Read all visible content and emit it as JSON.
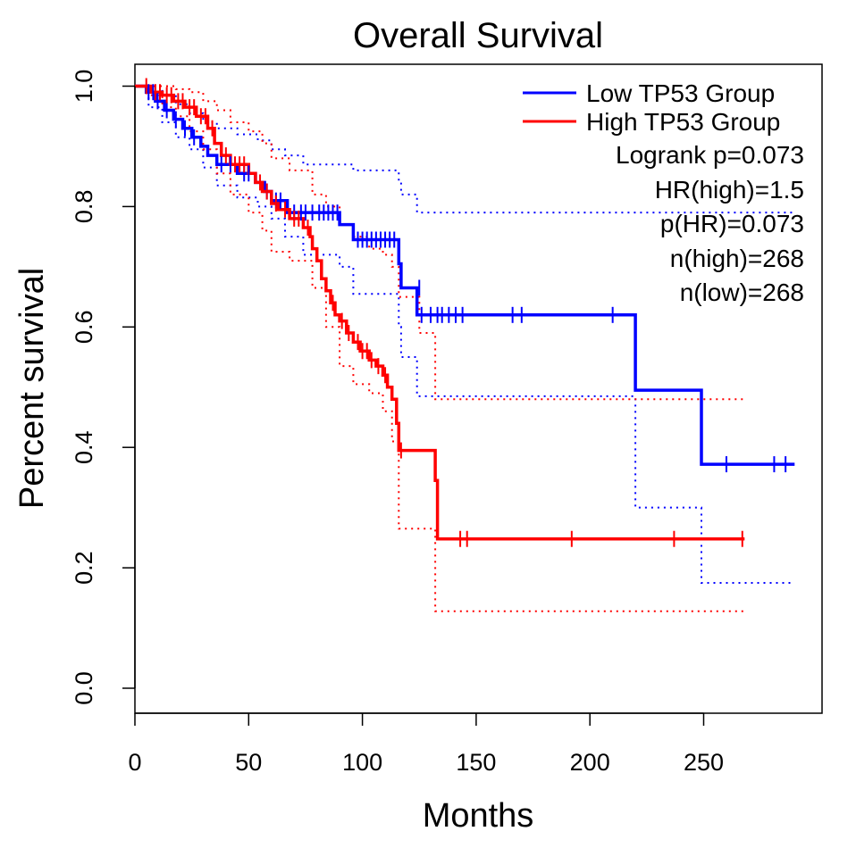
{
  "chart_data": {
    "type": "line",
    "title": "Overall Survival",
    "xlabel": "Months",
    "ylabel": "Percent survival",
    "xlim": [
      0,
      300
    ],
    "ylim": [
      0,
      1.04
    ],
    "x_ticks": [
      0,
      50,
      100,
      150,
      200,
      250
    ],
    "y_ticks": [
      0.0,
      0.2,
      0.4,
      0.6,
      0.8,
      1.0
    ],
    "x_tick_labels": [
      "0",
      "50",
      "100",
      "150",
      "200",
      "250"
    ],
    "y_tick_labels": [
      "0.0",
      "0.2",
      "0.4",
      "0.6",
      "0.8",
      "1.0"
    ],
    "legend": {
      "position": "top-right",
      "entries": [
        {
          "label": "Low TP53 Group",
          "color": "#0000ff"
        },
        {
          "label": "High TP53 Group",
          "color": "#ff0000"
        }
      ],
      "stats": [
        "Logrank p=0.073",
        "HR(high)=1.5",
        "p(HR)=0.073",
        "n(high)=268",
        "n(low)=268"
      ]
    },
    "series": [
      {
        "name": "Low TP53 Group",
        "color": "#0000ff",
        "steps": [
          [
            0,
            1.0
          ],
          [
            5,
            0.99
          ],
          [
            9,
            0.975
          ],
          [
            13,
            0.96
          ],
          [
            17,
            0.945
          ],
          [
            21,
            0.93
          ],
          [
            25,
            0.915
          ],
          [
            29,
            0.9
          ],
          [
            32,
            0.885
          ],
          [
            36,
            0.87
          ],
          [
            45,
            0.855
          ],
          [
            53,
            0.84
          ],
          [
            57,
            0.825
          ],
          [
            60,
            0.81
          ],
          [
            67,
            0.79
          ],
          [
            90,
            0.77
          ],
          [
            96,
            0.745
          ],
          [
            116,
            0.705
          ],
          [
            117,
            0.665
          ],
          [
            124,
            0.62
          ],
          [
            220,
            0.495
          ],
          [
            249,
            0.372
          ],
          [
            290,
            0.372
          ]
        ],
        "censors": [
          [
            6,
            0.99
          ],
          [
            8,
            0.99
          ],
          [
            10,
            0.975
          ],
          [
            14,
            0.96
          ],
          [
            18,
            0.945
          ],
          [
            22,
            0.93
          ],
          [
            26,
            0.915
          ],
          [
            38,
            0.87
          ],
          [
            42,
            0.87
          ],
          [
            48,
            0.855
          ],
          [
            50,
            0.855
          ],
          [
            58,
            0.825
          ],
          [
            62,
            0.81
          ],
          [
            64,
            0.81
          ],
          [
            70,
            0.79
          ],
          [
            73,
            0.79
          ],
          [
            75,
            0.79
          ],
          [
            78,
            0.79
          ],
          [
            81,
            0.79
          ],
          [
            83,
            0.79
          ],
          [
            85,
            0.79
          ],
          [
            87,
            0.79
          ],
          [
            89,
            0.79
          ],
          [
            98,
            0.745
          ],
          [
            100,
            0.745
          ],
          [
            102,
            0.745
          ],
          [
            104,
            0.745
          ],
          [
            106,
            0.745
          ],
          [
            108,
            0.745
          ],
          [
            110,
            0.745
          ],
          [
            112,
            0.745
          ],
          [
            114,
            0.745
          ],
          [
            125,
            0.665
          ],
          [
            126,
            0.62
          ],
          [
            130,
            0.62
          ],
          [
            133,
            0.62
          ],
          [
            135,
            0.62
          ],
          [
            138,
            0.62
          ],
          [
            141,
            0.62
          ],
          [
            144,
            0.62
          ],
          [
            166,
            0.62
          ],
          [
            170,
            0.62
          ],
          [
            210,
            0.62
          ],
          [
            260,
            0.372
          ],
          [
            281,
            0.372
          ],
          [
            286,
            0.372
          ]
        ],
        "ci_upper": [
          [
            0,
            1.0
          ],
          [
            6,
            1.0
          ],
          [
            12,
            0.985
          ],
          [
            18,
            0.97
          ],
          [
            24,
            0.955
          ],
          [
            30,
            0.94
          ],
          [
            36,
            0.93
          ],
          [
            45,
            0.92
          ],
          [
            54,
            0.91
          ],
          [
            60,
            0.895
          ],
          [
            66,
            0.885
          ],
          [
            74,
            0.87
          ],
          [
            96,
            0.86
          ],
          [
            116,
            0.84
          ],
          [
            117,
            0.82
          ],
          [
            124,
            0.79
          ],
          [
            220,
            0.79
          ],
          [
            249,
            0.79
          ],
          [
            290,
            0.79
          ]
        ],
        "ci_lower": [
          [
            0,
            1.0
          ],
          [
            6,
            0.965
          ],
          [
            12,
            0.94
          ],
          [
            18,
            0.915
          ],
          [
            24,
            0.895
          ],
          [
            30,
            0.865
          ],
          [
            36,
            0.835
          ],
          [
            45,
            0.815
          ],
          [
            54,
            0.8
          ],
          [
            60,
            0.78
          ],
          [
            66,
            0.75
          ],
          [
            74,
            0.72
          ],
          [
            90,
            0.7
          ],
          [
            96,
            0.655
          ],
          [
            116,
            0.6
          ],
          [
            117,
            0.55
          ],
          [
            124,
            0.485
          ],
          [
            220,
            0.3
          ],
          [
            249,
            0.175
          ],
          [
            290,
            0.175
          ]
        ]
      },
      {
        "name": "High TP53 Group",
        "color": "#ff0000",
        "steps": [
          [
            0,
            1.0
          ],
          [
            7,
            0.99
          ],
          [
            12,
            0.985
          ],
          [
            17,
            0.975
          ],
          [
            22,
            0.965
          ],
          [
            27,
            0.95
          ],
          [
            32,
            0.93
          ],
          [
            35,
            0.905
          ],
          [
            38,
            0.885
          ],
          [
            42,
            0.87
          ],
          [
            50,
            0.855
          ],
          [
            53,
            0.84
          ],
          [
            56,
            0.825
          ],
          [
            60,
            0.805
          ],
          [
            63,
            0.795
          ],
          [
            68,
            0.78
          ],
          [
            74,
            0.765
          ],
          [
            77,
            0.75
          ],
          [
            78,
            0.73
          ],
          [
            80,
            0.71
          ],
          [
            82,
            0.68
          ],
          [
            84,
            0.66
          ],
          [
            86,
            0.64
          ],
          [
            88,
            0.62
          ],
          [
            90,
            0.61
          ],
          [
            93,
            0.59
          ],
          [
            96,
            0.575
          ],
          [
            99,
            0.56
          ],
          [
            103,
            0.545
          ],
          [
            106,
            0.535
          ],
          [
            109,
            0.52
          ],
          [
            111,
            0.5
          ],
          [
            113,
            0.48
          ],
          [
            115,
            0.44
          ],
          [
            116,
            0.395
          ],
          [
            132,
            0.345
          ],
          [
            133,
            0.248
          ],
          [
            268,
            0.248
          ]
        ],
        "censors": [
          [
            5,
            1.0
          ],
          [
            9,
            0.99
          ],
          [
            11,
            0.99
          ],
          [
            14,
            0.985
          ],
          [
            16,
            0.985
          ],
          [
            19,
            0.975
          ],
          [
            21,
            0.975
          ],
          [
            24,
            0.965
          ],
          [
            26,
            0.965
          ],
          [
            29,
            0.95
          ],
          [
            31,
            0.95
          ],
          [
            34,
            0.93
          ],
          [
            40,
            0.885
          ],
          [
            44,
            0.87
          ],
          [
            46,
            0.87
          ],
          [
            48,
            0.87
          ],
          [
            55,
            0.84
          ],
          [
            58,
            0.825
          ],
          [
            62,
            0.805
          ],
          [
            66,
            0.795
          ],
          [
            70,
            0.78
          ],
          [
            72,
            0.78
          ],
          [
            76,
            0.765
          ],
          [
            87,
            0.64
          ],
          [
            91,
            0.61
          ],
          [
            94,
            0.59
          ],
          [
            98,
            0.575
          ],
          [
            100,
            0.56
          ],
          [
            102,
            0.56
          ],
          [
            104,
            0.545
          ],
          [
            107,
            0.535
          ],
          [
            110,
            0.52
          ],
          [
            117,
            0.395
          ],
          [
            143,
            0.248
          ],
          [
            146,
            0.248
          ],
          [
            192,
            0.248
          ],
          [
            237,
            0.248
          ],
          [
            267,
            0.248
          ]
        ],
        "ci_upper": [
          [
            0,
            1.0
          ],
          [
            6,
            1.0
          ],
          [
            12,
            1.0
          ],
          [
            18,
            0.995
          ],
          [
            24,
            0.99
          ],
          [
            30,
            0.975
          ],
          [
            36,
            0.96
          ],
          [
            42,
            0.94
          ],
          [
            50,
            0.925
          ],
          [
            56,
            0.905
          ],
          [
            60,
            0.88
          ],
          [
            68,
            0.86
          ],
          [
            78,
            0.82
          ],
          [
            84,
            0.8
          ],
          [
            90,
            0.77
          ],
          [
            96,
            0.75
          ],
          [
            103,
            0.73
          ],
          [
            109,
            0.72
          ],
          [
            113,
            0.7
          ],
          [
            116,
            0.65
          ],
          [
            125,
            0.59
          ],
          [
            132,
            0.48
          ],
          [
            268,
            0.48
          ]
        ],
        "ci_lower": [
          [
            0,
            1.0
          ],
          [
            6,
            0.985
          ],
          [
            12,
            0.965
          ],
          [
            18,
            0.95
          ],
          [
            24,
            0.925
          ],
          [
            30,
            0.895
          ],
          [
            36,
            0.855
          ],
          [
            42,
            0.82
          ],
          [
            50,
            0.79
          ],
          [
            56,
            0.76
          ],
          [
            60,
            0.725
          ],
          [
            68,
            0.71
          ],
          [
            78,
            0.665
          ],
          [
            84,
            0.6
          ],
          [
            90,
            0.535
          ],
          [
            96,
            0.505
          ],
          [
            103,
            0.49
          ],
          [
            109,
            0.46
          ],
          [
            113,
            0.41
          ],
          [
            116,
            0.265
          ],
          [
            132,
            0.128
          ],
          [
            268,
            0.128
          ]
        ]
      }
    ]
  }
}
